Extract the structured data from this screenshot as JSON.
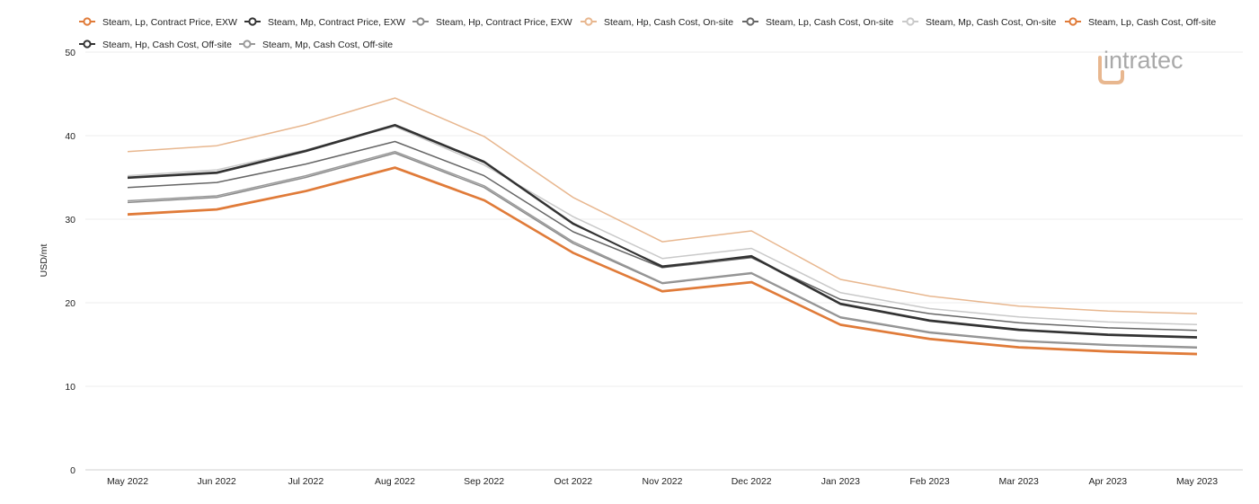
{
  "brand": {
    "logo_text": "intratec",
    "logo_accent_color": "#e8b78f",
    "logo_color": "#a9a9a9"
  },
  "chart_data": {
    "type": "line",
    "title": "",
    "xlabel": "",
    "ylabel": "USD/mt",
    "ylim": [
      0,
      50
    ],
    "yticks": [
      0,
      10,
      20,
      30,
      40,
      50
    ],
    "grid": true,
    "legend_position": "top",
    "categories": [
      "May 2022",
      "Jun 2022",
      "Jul 2022",
      "Aug 2022",
      "Sep 2022",
      "Oct 2022",
      "Nov 2022",
      "Dec 2022",
      "Jan 2023",
      "Feb 2023",
      "Mar 2023",
      "Apr 2023",
      "May 2023"
    ],
    "series": [
      {
        "name": "Steam, Lp, Contract Price, EXW",
        "color": "#e07b39",
        "width": 2.2,
        "values": [
          30.6,
          31.2,
          33.4,
          36.2,
          32.3,
          26.0,
          21.4,
          22.5,
          17.4,
          15.7,
          14.7,
          14.2,
          13.9
        ]
      },
      {
        "name": "Steam, Mp, Contract Price, EXW",
        "color": "#333333",
        "width": 2.0,
        "values": [
          35.0,
          35.6,
          38.2,
          41.3,
          36.9,
          29.5,
          24.3,
          25.6,
          19.9,
          17.9,
          16.8,
          16.2,
          15.9
        ]
      },
      {
        "name": "Steam, Hp, Contract Price, EXW",
        "color": "#8c8c8c",
        "width": 1.5,
        "values": [
          32.0,
          32.6,
          35.0,
          37.9,
          33.8,
          27.1,
          22.3,
          23.5,
          18.2,
          16.4,
          15.4,
          14.9,
          14.6
        ]
      },
      {
        "name": "Steam, Hp, Cash Cost, On-site",
        "color": "#e8b78f",
        "width": 1.5,
        "values": [
          38.1,
          38.8,
          41.3,
          44.5,
          39.9,
          32.6,
          27.3,
          28.6,
          22.8,
          20.8,
          19.6,
          19.0,
          18.7
        ]
      },
      {
        "name": "Steam, Lp, Cash Cost, On-site",
        "color": "#666666",
        "width": 1.5,
        "values": [
          33.8,
          34.4,
          36.6,
          39.3,
          35.2,
          28.5,
          24.2,
          25.4,
          20.4,
          18.7,
          17.6,
          17.0,
          16.7
        ]
      },
      {
        "name": "Steam, Mp, Cash Cost, On-site",
        "color": "#c9c9c9",
        "width": 1.5,
        "values": [
          35.2,
          35.9,
          38.3,
          41.1,
          36.5,
          30.3,
          25.3,
          26.5,
          21.2,
          19.3,
          18.3,
          17.7,
          17.4
        ]
      },
      {
        "name": "Steam, Lp, Cash Cost, Off-site",
        "color": "#e07b39",
        "width": 1.5,
        "values": [
          30.5,
          31.1,
          33.3,
          36.1,
          32.2,
          25.9,
          21.3,
          22.4,
          17.3,
          15.6,
          14.6,
          14.1,
          13.8
        ]
      },
      {
        "name": "Steam, Hp, Cash Cost, Off-site",
        "color": "#333333",
        "width": 1.5,
        "values": [
          34.9,
          35.5,
          38.1,
          41.2,
          36.8,
          29.4,
          24.4,
          25.5,
          19.8,
          17.8,
          16.7,
          16.1,
          15.8
        ]
      },
      {
        "name": "Steam, Mp, Cash Cost, Off-site",
        "color": "#999999",
        "width": 1.5,
        "values": [
          32.2,
          32.8,
          35.2,
          38.1,
          34.0,
          27.3,
          22.4,
          23.6,
          18.3,
          16.5,
          15.5,
          15.0,
          14.7
        ]
      }
    ]
  }
}
